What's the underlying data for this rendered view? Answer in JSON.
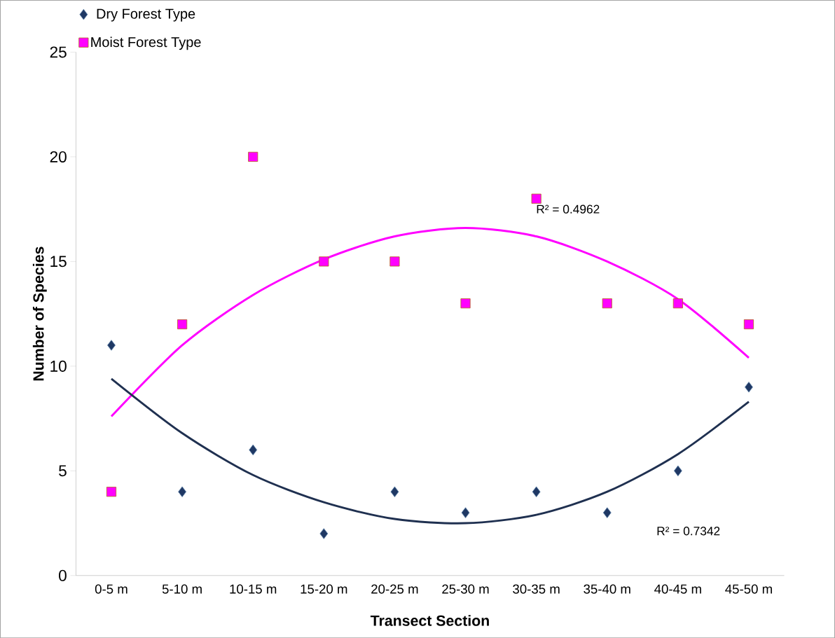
{
  "chart_data": {
    "type": "scatter",
    "xlabel": "Transect Section",
    "ylabel": "Number of Species",
    "categories": [
      "0-5 m",
      "5-10 m",
      "10-15 m",
      "15-20 m",
      "20-25 m",
      "25-30 m",
      "30-35 m",
      "35-40 m",
      "40-45 m",
      "45-50 m"
    ],
    "series": [
      {
        "name": "Dry Forest Type",
        "marker": "diamond",
        "color": "#1f3864",
        "values": [
          11,
          4,
          6,
          2,
          4,
          3,
          4,
          3,
          5,
          9
        ]
      },
      {
        "name": "Moist Forest Type",
        "marker": "square",
        "color": "#ff00ff",
        "values": [
          4,
          12,
          20,
          15,
          15,
          13,
          18,
          13,
          13,
          12
        ]
      },
      {
        "type": "line",
        "marker": "none",
        "color": "#ff00ff",
        "values": [
          7.6,
          11.0,
          13.4,
          15.1,
          16.2,
          16.6,
          16.2,
          15.0,
          13.2,
          10.4
        ]
      },
      {
        "type": "line",
        "marker": "none",
        "color": "#1f3050",
        "values": [
          9.4,
          6.8,
          4.8,
          3.5,
          2.7,
          2.5,
          2.9,
          4.0,
          5.8,
          8.3
        ]
      }
    ],
    "ylim": [
      0,
      25
    ],
    "yticks": [
      0,
      5,
      10,
      15,
      20,
      25
    ],
    "grid": false,
    "legend": "top left",
    "annotations": [
      "R² = 0.4962",
      "R² = 0.7342"
    ]
  }
}
